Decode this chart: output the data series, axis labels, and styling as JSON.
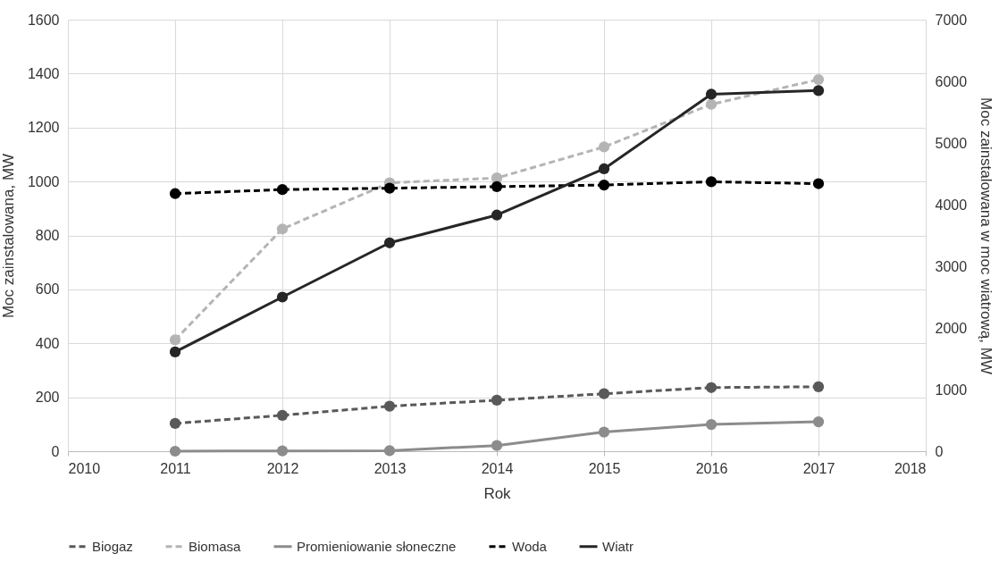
{
  "chart_data": {
    "type": "line",
    "xlabel": "Rok",
    "ylabel": "Moc zainstalowana, MW",
    "y2label": "Moc zainstalowana w moc wiatrową, MW",
    "x": [
      2011,
      2012,
      2013,
      2014,
      2015,
      2016,
      2017
    ],
    "xlim": [
      2010,
      2018
    ],
    "xticks": [
      2010,
      2011,
      2012,
      2013,
      2014,
      2015,
      2016,
      2017,
      2018
    ],
    "ylim": [
      0,
      1600
    ],
    "yticks": [
      0,
      200,
      400,
      600,
      800,
      1000,
      1200,
      1400,
      1600
    ],
    "y2lim": [
      0,
      7000
    ],
    "y2ticks": [
      0,
      1000,
      2000,
      3000,
      4000,
      5000,
      6000,
      7000
    ],
    "grid": true,
    "legend": "bottom",
    "marker": "circle",
    "series": [
      {
        "name": "Biogaz",
        "color": "#595959",
        "line_style": "dashed",
        "values": [
          103,
          133,
          167,
          189,
          213,
          236,
          239
        ]
      },
      {
        "name": "Biomasa",
        "color": "#b4b4b4",
        "line_style": "dashed",
        "values": [
          413,
          824,
          995,
          1013,
          1128,
          1286,
          1378
        ]
      },
      {
        "name": "Promieniowanie słoneczne",
        "color": "#8c8c8c",
        "line_style": "solid",
        "values": [
          0,
          1,
          2,
          21,
          71,
          99,
          109
        ]
      },
      {
        "name": "Woda",
        "color": "#000000",
        "line_style": "dashed",
        "values": [
          955,
          970,
          975,
          981,
          987,
          999,
          992
        ]
      },
      {
        "name": "Wiatr",
        "color": "#262626",
        "line_style": "solid",
        "axis": "y2",
        "values": [
          1610,
          2500,
          3380,
          3830,
          4580,
          5790,
          5850
        ]
      }
    ]
  }
}
